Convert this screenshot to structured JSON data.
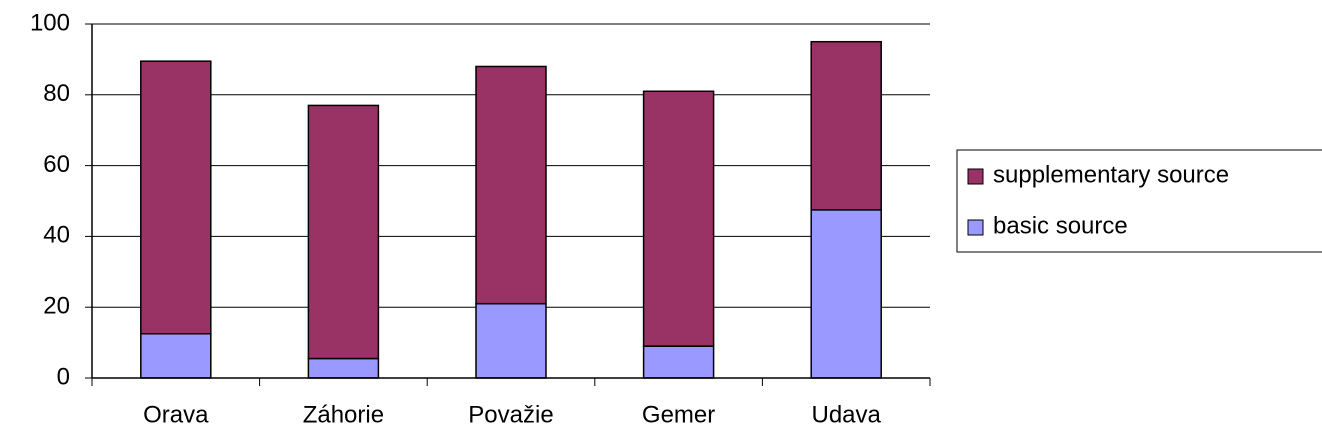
{
  "chart_data": {
    "type": "stacked_bar",
    "categories": [
      "Orava",
      "Záhorie",
      "Považie",
      "Gemer",
      "Udava"
    ],
    "series": [
      {
        "name": "basic source",
        "color": "#9999ff",
        "values": [
          12.5,
          5.5,
          21,
          9,
          47.5
        ]
      },
      {
        "name": "supplementary source",
        "color": "#993366",
        "values": [
          77,
          71.5,
          67,
          72,
          47.5
        ]
      }
    ],
    "ylim": [
      0,
      100
    ],
    "yticks": [
      0,
      20,
      40,
      60,
      80,
      100
    ],
    "grid": true,
    "legend": "right"
  }
}
